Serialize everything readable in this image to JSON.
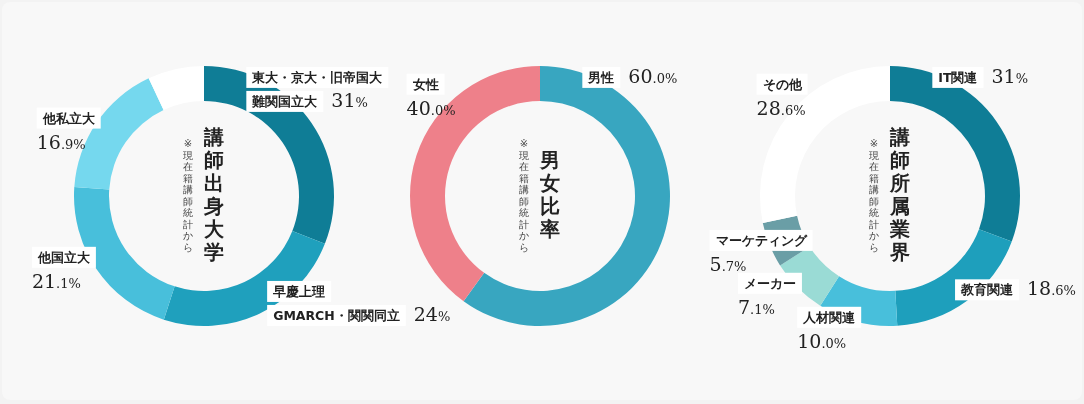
{
  "chart_data": [
    {
      "type": "donut",
      "title": "講師出身大学",
      "subtitle": "※現在籍講師統計から",
      "categories": [
        "東大・京大・旧帝国大難関国立大",
        "早慶上理GMARCH・関関同立",
        "他国立大",
        "他私立大",
        null
      ],
      "values": [
        31,
        24,
        21.1,
        16.9,
        7.0
      ],
      "colors": [
        "#0f7d96",
        "#1fa0bd",
        "#48bfdb",
        "#75d8ee",
        "#ffffff"
      ],
      "value_labels": [
        "31%",
        "24%",
        "21.1%",
        "16.9%",
        null
      ]
    },
    {
      "type": "donut",
      "title": "男女比率",
      "subtitle": "※現在籍講師統計から",
      "categories": [
        "男性",
        "女性"
      ],
      "values": [
        60.0,
        40.0
      ],
      "colors": [
        "#38a6c0",
        "#ee808a"
      ],
      "value_labels": [
        "60.0%",
        "40.0%"
      ]
    },
    {
      "type": "donut",
      "title": "講師所属業界",
      "subtitle": "※現在籍講師統計から",
      "categories": [
        "IT関連",
        "教育関連",
        "人材関連",
        "メーカー",
        "マーケティング",
        "その他"
      ],
      "values": [
        31,
        18.6,
        10.0,
        7.1,
        5.7,
        28.6
      ],
      "colors": [
        "#0f7d96",
        "#1e9fbc",
        "#48bfdb",
        "#9adbd5",
        "#6a9ea6",
        "#ffffff"
      ],
      "value_labels": [
        "31%",
        "18.6%",
        "10.0%",
        "7.1%",
        "5.7%",
        "28.6%"
      ]
    }
  ]
}
